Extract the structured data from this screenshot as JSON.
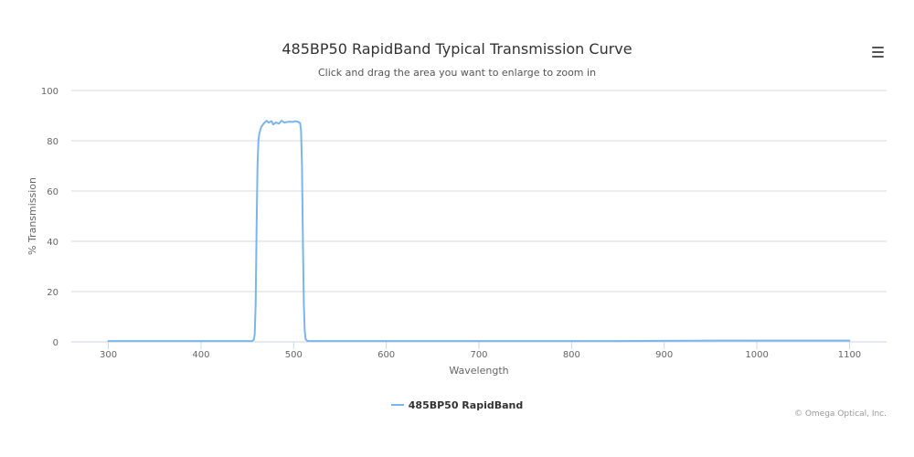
{
  "chart": {
    "title": "485BP50 RapidBand Typical Transmission Curve",
    "subtitle": "Click and drag the area you want to enlarge to zoom in",
    "menu_icon": "hamburger-menu-icon",
    "credits": "© Omega Optical, Inc."
  },
  "chart_data": {
    "type": "line",
    "title": "485BP50 RapidBand Typical Transmission Curve",
    "subtitle": "Click and drag the area you want to enlarge to zoom in",
    "xlabel": "Wavelength",
    "ylabel": "% Transmission",
    "xlim": [
      260,
      1140
    ],
    "ylim": [
      0,
      100
    ],
    "xticks": [
      300,
      400,
      500,
      600,
      700,
      800,
      900,
      1000,
      1100
    ],
    "yticks": [
      0,
      20,
      40,
      60,
      80,
      100
    ],
    "grid": true,
    "legend_position": "bottom-center",
    "series": [
      {
        "name": "485BP50 RapidBand",
        "color": "#7cb5ec",
        "points": [
          [
            300,
            0.3
          ],
          [
            350,
            0.3
          ],
          [
            400,
            0.3
          ],
          [
            440,
            0.3
          ],
          [
            455,
            0.3
          ],
          [
            457,
            0.8
          ],
          [
            458,
            3
          ],
          [
            459,
            15
          ],
          [
            460,
            45
          ],
          [
            461,
            70
          ],
          [
            462,
            80
          ],
          [
            463,
            83
          ],
          [
            465,
            85.5
          ],
          [
            468,
            87
          ],
          [
            471,
            88
          ],
          [
            473,
            87.2
          ],
          [
            476,
            87.8
          ],
          [
            478,
            86.5
          ],
          [
            481,
            87.3
          ],
          [
            484,
            86.8
          ],
          [
            487,
            88
          ],
          [
            490,
            87.2
          ],
          [
            493,
            87.5
          ],
          [
            496,
            87.6
          ],
          [
            499,
            87.5
          ],
          [
            502,
            87.8
          ],
          [
            505,
            87.5
          ],
          [
            507,
            87
          ],
          [
            508,
            84
          ],
          [
            509,
            70
          ],
          [
            510,
            40
          ],
          [
            511,
            15
          ],
          [
            512,
            4
          ],
          [
            513,
            1
          ],
          [
            515,
            0.3
          ],
          [
            550,
            0.3
          ],
          [
            600,
            0.3
          ],
          [
            650,
            0.3
          ],
          [
            700,
            0.3
          ],
          [
            750,
            0.3
          ],
          [
            800,
            0.3
          ],
          [
            850,
            0.3
          ],
          [
            900,
            0.4
          ],
          [
            950,
            0.5
          ],
          [
            1000,
            0.5
          ],
          [
            1050,
            0.5
          ],
          [
            1100,
            0.5
          ]
        ]
      }
    ]
  }
}
